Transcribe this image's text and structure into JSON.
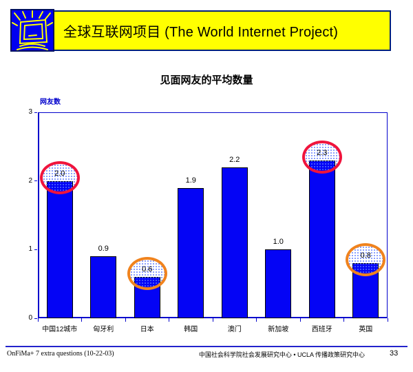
{
  "header": {
    "logo_icon": "crt-monitor-rays-icon",
    "title": "全球互联网项目 (The World Internet Project)"
  },
  "slide": {
    "title": "见面网友的平均数量"
  },
  "chart_data": {
    "type": "bar",
    "title": "见面网友的平均数量",
    "ylabel": "网友数",
    "xlabel": "",
    "ylim": [
      0,
      3
    ],
    "yticks": [
      0,
      1,
      2,
      3
    ],
    "grid": false,
    "legend": false,
    "categories": [
      "中国12城市",
      "匈牙利",
      "日本",
      "韩国",
      "澳门",
      "新加坡",
      "西班牙",
      "英国"
    ],
    "values": [
      2.0,
      0.9,
      0.6,
      1.9,
      2.2,
      1.0,
      2.3,
      0.8
    ],
    "value_labels": [
      "2.0",
      "0.9",
      "0.6",
      "1.9",
      "2.2",
      "1.0",
      "2.3",
      "0.8"
    ],
    "bar_color": "#0404f5",
    "axis_color": "#0000cc",
    "highlights": [
      {
        "index": 0,
        "circle_color": "#f0143c",
        "color_name": "red"
      },
      {
        "index": 2,
        "circle_color": "#f0831e",
        "color_name": "orange"
      },
      {
        "index": 6,
        "circle_color": "#f0143c",
        "color_name": "red"
      },
      {
        "index": 7,
        "circle_color": "#f0831e",
        "color_name": "orange"
      }
    ]
  },
  "footer": {
    "left": "OnFiMa+ 7 extra questions (10-22-03)",
    "right": "中国社会科学院社会发展研究中心 • UCLA 传播政策研究中心",
    "page": "33"
  }
}
